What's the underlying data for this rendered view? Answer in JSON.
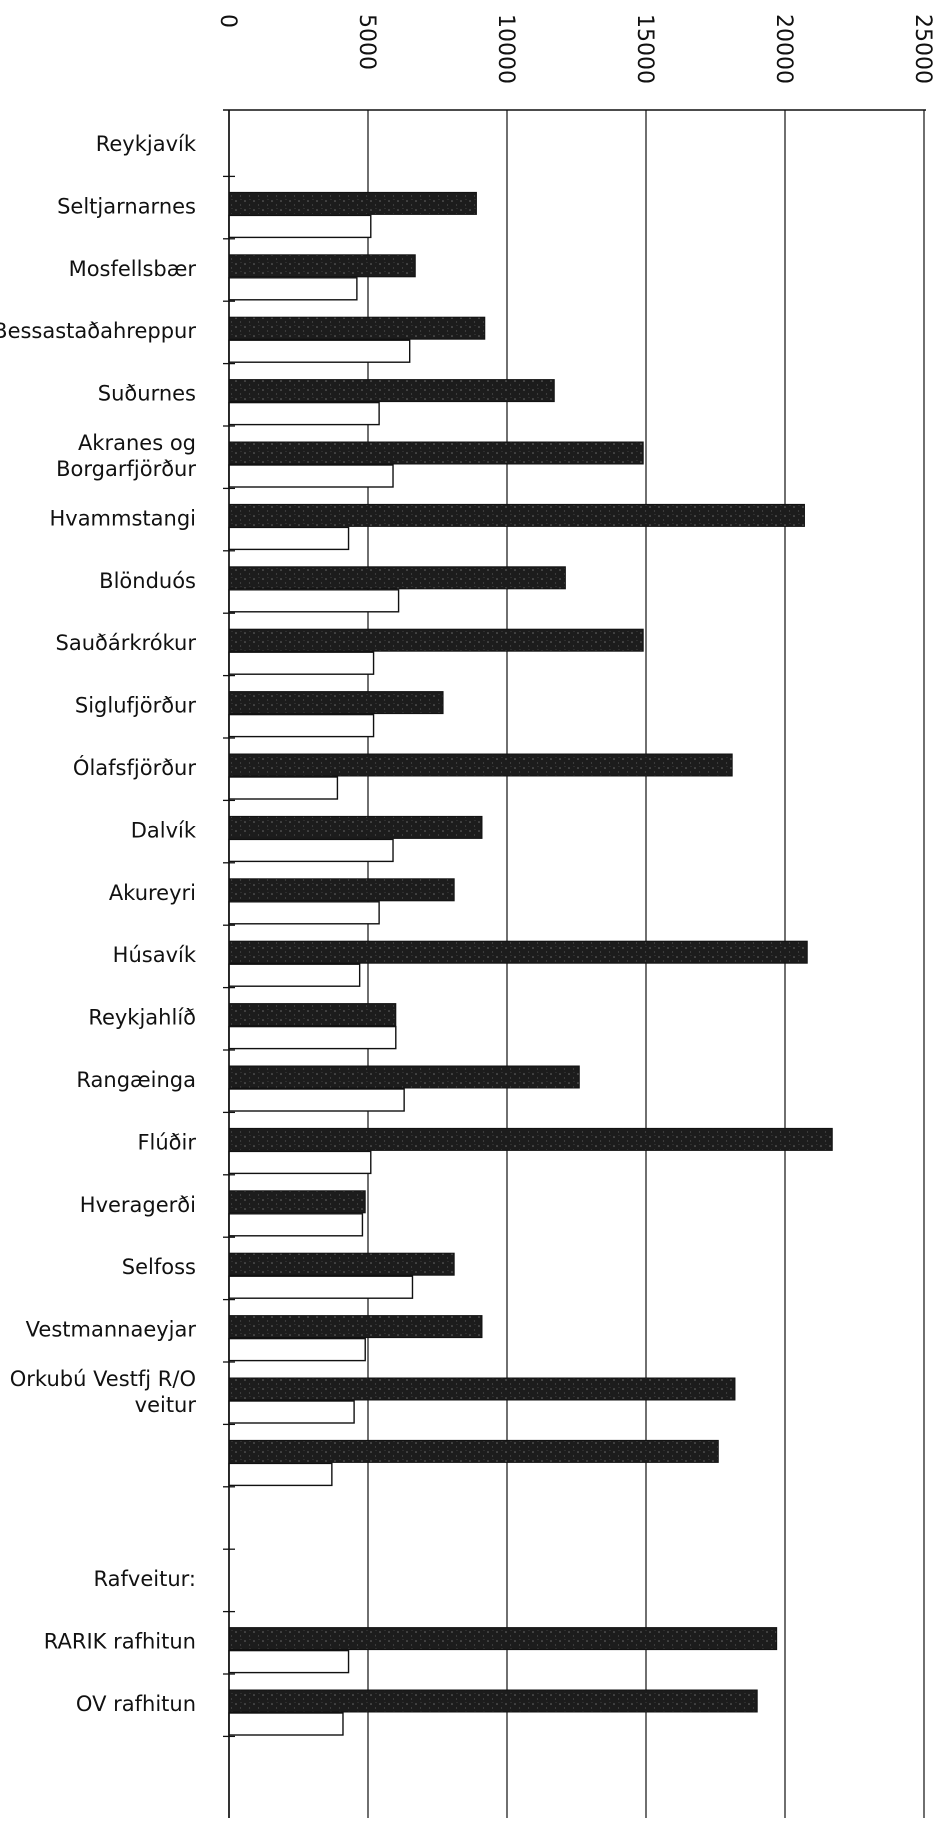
{
  "chart_data": {
    "type": "bar",
    "orientation": "horizontal",
    "title": "",
    "xlabel": "",
    "ylabel": "",
    "xlim": [
      0,
      25000
    ],
    "ticks": [
      0,
      5000,
      10000,
      15000,
      20000,
      25000
    ],
    "tick_labels": [
      "0",
      "5000",
      "10000",
      "15000",
      "20000",
      "25000"
    ],
    "grid": true,
    "categories": [
      "Reykjavík",
      "Seltjarnarnes",
      "Mosfellsbær",
      "Bessastaðahreppur",
      "Suðurnes",
      "Akranes og Borgarfjörður",
      "Hvammstangi",
      "Blönduós",
      "Sauðárkrókur",
      "Siglufjörður",
      "Ólafsfjörður",
      "Dalvík",
      "Akureyri",
      "Húsavík",
      "Reykjahlíð",
      "Rangæinga",
      "Flúðir",
      "Hveragerði",
      "Selfoss",
      "Vestmannaeyjar",
      "Orkubú Vestfj R/O veitur",
      "",
      "",
      "Rafveitur:",
      "RARIK rafhitun",
      "OV rafhitun"
    ],
    "category_lines": [
      [
        "Reykjavík"
      ],
      [
        "Seltjarnarnes"
      ],
      [
        "Mosfellsbær"
      ],
      [
        "Bessastaðahreppur"
      ],
      [
        "Suðurnes"
      ],
      [
        "Akranes og",
        "Borgarfjörður"
      ],
      [
        "Hvammstangi"
      ],
      [
        "Blönduós"
      ],
      [
        "Sauðárkrókur"
      ],
      [
        "Siglufjörður"
      ],
      [
        "Ólafsfjörður"
      ],
      [
        "Dalvík"
      ],
      [
        "Akureyri"
      ],
      [
        "Húsavík"
      ],
      [
        "Reykjahlíð"
      ],
      [
        "Rangæinga"
      ],
      [
        "Flúðir"
      ],
      [
        "Hveragerði"
      ],
      [
        "Selfoss"
      ],
      [
        "Vestmannaeyjar"
      ],
      [
        "Orkubú Vestfj R/O",
        "veitur"
      ],
      [],
      [],
      [
        "Rafveitur:"
      ],
      [
        "RARIK rafhitun"
      ],
      [
        "OV rafhitun"
      ]
    ],
    "series": [
      {
        "color": "#1a1a1a",
        "values": [
          null,
          8900,
          6700,
          9200,
          11700,
          14900,
          20700,
          12100,
          14900,
          7700,
          18100,
          9100,
          8100,
          20800,
          6000,
          12600,
          21700,
          4900,
          8100,
          9100,
          18200,
          17600,
          null,
          null,
          19700,
          19000
        ]
      },
      {
        "color": "#ffffff",
        "values": [
          null,
          5100,
          4600,
          6500,
          5400,
          5900,
          4300,
          6100,
          5200,
          5200,
          3900,
          5900,
          5400,
          4700,
          6000,
          6300,
          5100,
          4800,
          6600,
          4900,
          4500,
          3700,
          null,
          null,
          4300,
          4100
        ]
      }
    ]
  }
}
